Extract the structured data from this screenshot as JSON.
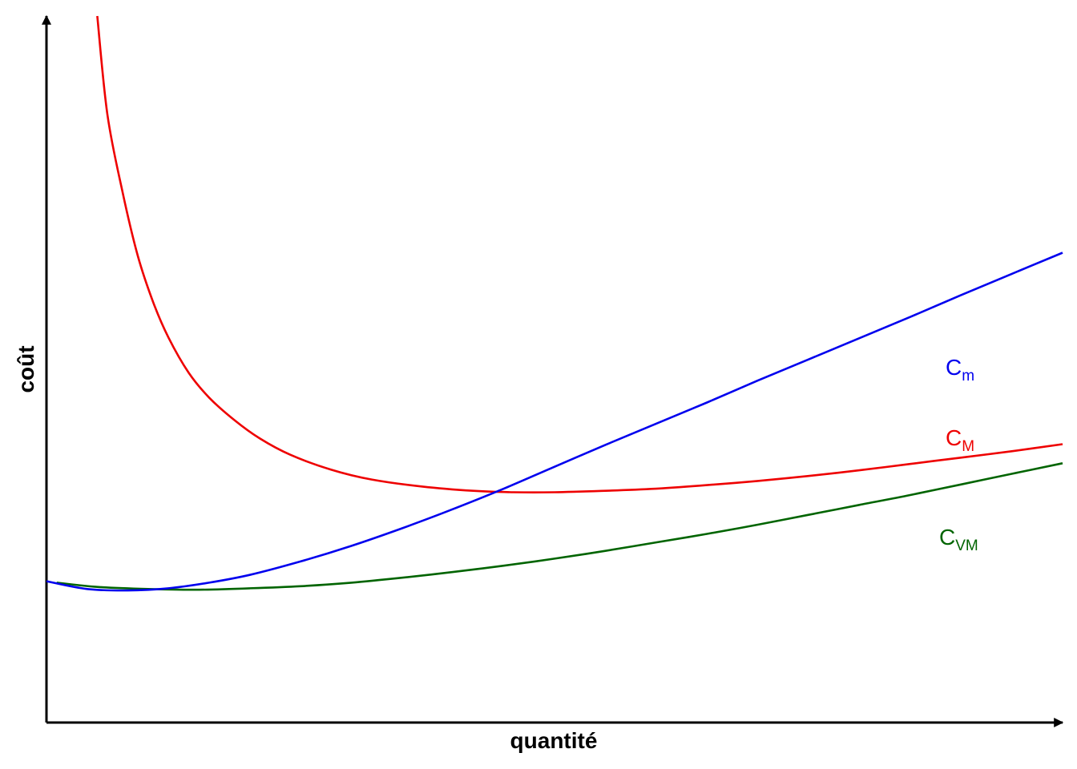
{
  "chart_data": {
    "type": "line",
    "title": "",
    "xlabel": "quantité",
    "ylabel": "coût",
    "xlim": [
      0,
      10
    ],
    "ylim": [
      0,
      10
    ],
    "ticks": "none",
    "grid": false,
    "legend": "none",
    "series": [
      {
        "name": "Cm",
        "label_main": "C",
        "label_sub": "m",
        "color": "#0000ee",
        "x": [
          0,
          0.4,
          0.8,
          1.2,
          1.6,
          2.0,
          2.5,
          3.0,
          3.5,
          4.0,
          4.5,
          5.0,
          5.5,
          6.0,
          6.5,
          7.0,
          7.5,
          8.0,
          8.5,
          9.0,
          9.5,
          10.0
        ],
        "y": [
          2.0,
          1.89,
          1.87,
          1.9,
          1.98,
          2.09,
          2.28,
          2.5,
          2.75,
          3.02,
          3.31,
          3.62,
          3.93,
          4.23,
          4.53,
          4.84,
          5.14,
          5.44,
          5.74,
          6.05,
          6.35,
          6.65
        ]
      },
      {
        "name": "CM",
        "label_main": "C",
        "label_sub": "M",
        "color": "#ee0000",
        "x": [
          0.5,
          0.6,
          0.75,
          0.9,
          1.05,
          1.2,
          1.4,
          1.6,
          1.85,
          2.1,
          2.4,
          2.8,
          3.2,
          3.7,
          4.2,
          4.6,
          5.0,
          5.5,
          6.0,
          6.5,
          7.0,
          7.5,
          8.0,
          8.5,
          9.0,
          9.5,
          10.0
        ],
        "y": [
          10.0,
          8.6,
          7.5,
          6.6,
          5.95,
          5.45,
          4.95,
          4.6,
          4.28,
          4.02,
          3.79,
          3.58,
          3.44,
          3.34,
          3.28,
          3.26,
          3.26,
          3.28,
          3.31,
          3.36,
          3.42,
          3.49,
          3.57,
          3.66,
          3.75,
          3.84,
          3.94
        ]
      },
      {
        "name": "CVM",
        "label_main": "C",
        "label_sub": "VM",
        "color": "#006400",
        "x": [
          0.1,
          0.5,
          1.0,
          1.5,
          2.0,
          2.5,
          3.0,
          3.5,
          4.0,
          4.5,
          5.0,
          5.5,
          6.0,
          6.5,
          7.0,
          7.5,
          8.0,
          8.5,
          9.0,
          9.5,
          10.0
        ],
        "y": [
          1.98,
          1.92,
          1.89,
          1.88,
          1.9,
          1.93,
          1.98,
          2.05,
          2.13,
          2.22,
          2.32,
          2.43,
          2.55,
          2.67,
          2.8,
          2.94,
          3.08,
          3.22,
          3.37,
          3.52,
          3.67
        ]
      }
    ]
  }
}
